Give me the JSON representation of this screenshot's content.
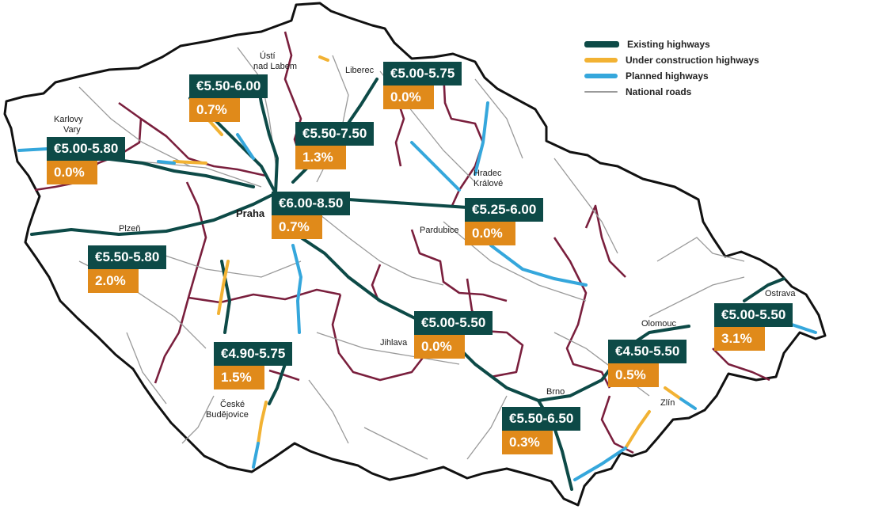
{
  "legend": {
    "items": [
      {
        "label": "Existing highways",
        "color": "#0d4a47",
        "icon": "existing-highway-swatch"
      },
      {
        "label": "Under construction highways",
        "color": "#f2b233",
        "icon": "construction-highway-swatch"
      },
      {
        "label": "Planned highways",
        "color": "#35a7dc",
        "icon": "planned-highway-swatch"
      },
      {
        "label": "National roads",
        "color": "#9a9a9a",
        "icon": "national-road-swatch"
      }
    ]
  },
  "cities": {
    "karlovy_vary_1": "Karlovy",
    "karlovy_vary_2": "Vary",
    "usti_1": "Ústí",
    "usti_2": "nad Labem",
    "liberec": "Liberec",
    "hradec_1": "Hradec",
    "hradec_2": "Králové",
    "praha": "Praha",
    "plzen": "Plzeň",
    "pardubice": "Pardubice",
    "jihlava": "Jihlava",
    "olomouc": "Olomouc",
    "ostrava": "Ostrava",
    "ceske_1": "České",
    "ceske_2": "Budějovice",
    "brno": "Brno",
    "zlin": "Zlín"
  },
  "regions": [
    {
      "price": "€5.00-5.80",
      "change": "0.0%"
    },
    {
      "price": "€5.50-6.00",
      "change": "0.7%"
    },
    {
      "price": "€5.00-5.75",
      "change": "0.0%"
    },
    {
      "price": "€5.50-7.50",
      "change": "1.3%"
    },
    {
      "price": "€6.00-8.50",
      "change": "0.7%"
    },
    {
      "price": "€5.25-6.00",
      "change": "0.0%"
    },
    {
      "price": "€5.50-5.80",
      "change": "2.0%"
    },
    {
      "price": "€5.00-5.50",
      "change": "0.0%"
    },
    {
      "price": "€4.90-5.75",
      "change": "1.5%"
    },
    {
      "price": "€5.00-5.50",
      "change": "3.1%"
    },
    {
      "price": "€4.50-5.50",
      "change": "0.5%"
    },
    {
      "price": "€5.50-6.50",
      "change": "0.3%"
    }
  ]
}
